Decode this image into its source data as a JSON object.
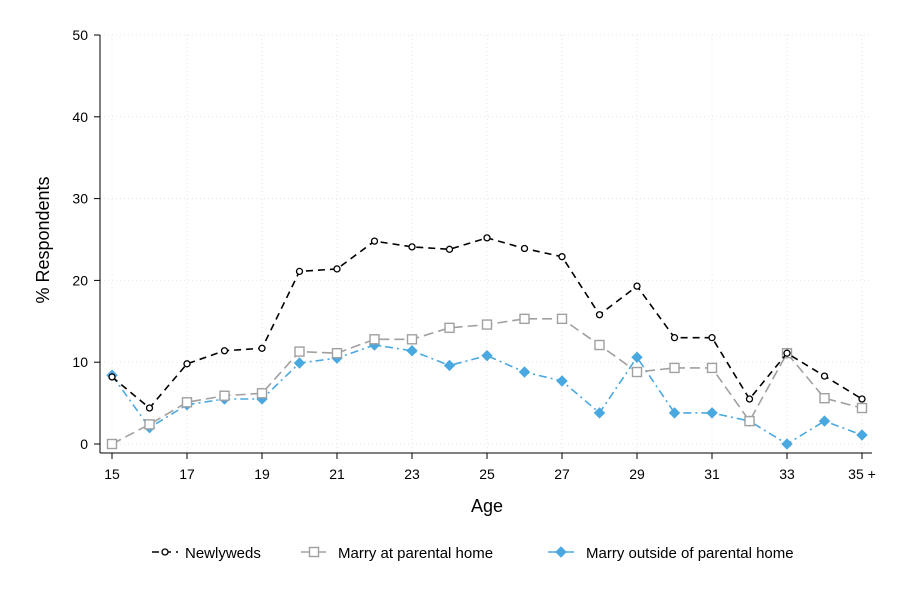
{
  "chart_data": {
    "type": "line",
    "title": "",
    "xlabel": "Age",
    "ylabel": "% Respondents",
    "ylim": [
      0,
      50
    ],
    "yticks": [
      0,
      10,
      20,
      30,
      40,
      50
    ],
    "x": [
      15,
      16,
      17,
      18,
      19,
      20,
      21,
      22,
      23,
      24,
      25,
      26,
      27,
      28,
      29,
      30,
      31,
      32,
      33,
      34,
      35
    ],
    "xtick_labels": [
      "15",
      "17",
      "19",
      "21",
      "23",
      "25",
      "27",
      "29",
      "31",
      "33",
      "35 +"
    ],
    "xtick_values": [
      15,
      17,
      19,
      21,
      23,
      25,
      27,
      29,
      31,
      33,
      35
    ],
    "grid": true,
    "legend_position": "bottom",
    "series": [
      {
        "name": "Newlyweds",
        "color": "#000000",
        "marker": "circle",
        "dash": "dashed",
        "values": [
          8.2,
          4.4,
          9.8,
          11.4,
          11.7,
          21.1,
          21.4,
          24.8,
          24.1,
          23.8,
          25.2,
          23.9,
          22.9,
          15.8,
          19.3,
          13.0,
          13.0,
          5.5,
          11.1,
          8.3,
          5.5
        ]
      },
      {
        "name": "Marry at parental home",
        "color": "#a0a0a0",
        "marker": "square",
        "dash": "longdash",
        "values": [
          0.0,
          2.4,
          5.1,
          5.9,
          6.2,
          11.3,
          11.1,
          12.8,
          12.8,
          14.2,
          14.6,
          15.3,
          15.3,
          12.1,
          8.8,
          9.3,
          9.3,
          2.8,
          11.1,
          5.6,
          4.4
        ]
      },
      {
        "name": "Marry outside of parental home",
        "color": "#4aa8e0",
        "marker": "diamond",
        "dash": "dashdot",
        "values": [
          8.4,
          2.0,
          4.8,
          5.5,
          5.5,
          9.9,
          10.5,
          12.1,
          11.4,
          9.6,
          10.8,
          8.8,
          7.7,
          3.8,
          10.6,
          3.8,
          3.8,
          2.8,
          0.0,
          2.8,
          1.1
        ]
      }
    ]
  }
}
